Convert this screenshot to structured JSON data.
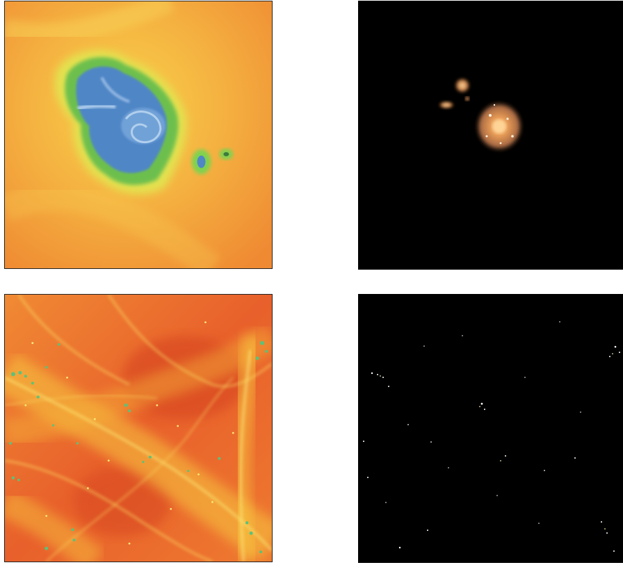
{
  "figure": {
    "panels": [
      {
        "id": "gas-density-zoom",
        "colormap": "orange-yellow-green-blue",
        "background": "#f2993a"
      },
      {
        "id": "stellar-light-zoom",
        "colormap": "black-orange-white",
        "background": "#000000"
      },
      {
        "id": "gas-density-wide",
        "colormap": "red-orange-yellow-green",
        "background": "#e8602b"
      },
      {
        "id": "stellar-light-wide",
        "colormap": "black-white",
        "background": "#000000"
      }
    ]
  }
}
